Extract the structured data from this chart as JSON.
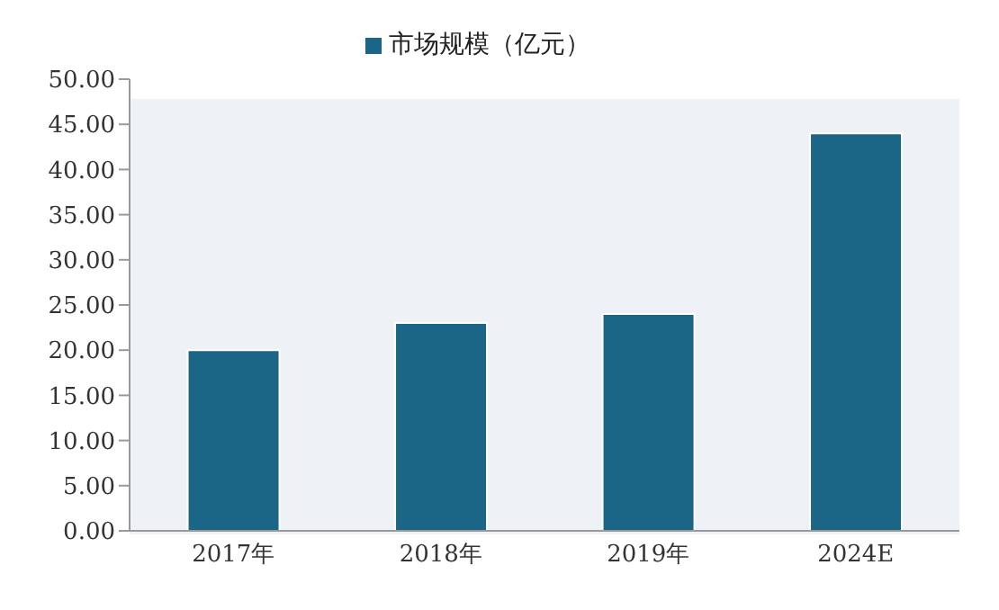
{
  "chart_data": {
    "type": "bar",
    "categories": [
      "2017年",
      "2018年",
      "2019年",
      "2024E"
    ],
    "series": [
      {
        "name": "市场规模（亿元）",
        "color": "#1b6587",
        "values": [
          20,
          23,
          24,
          44
        ]
      }
    ],
    "ylim": [
      0,
      50
    ],
    "yticks": [
      {
        "value": 0,
        "label": "0.00"
      },
      {
        "value": 5,
        "label": "5.00"
      },
      {
        "value": 10,
        "label": "10.00"
      },
      {
        "value": 15,
        "label": "15.00"
      },
      {
        "value": 20,
        "label": "20.00"
      },
      {
        "value": 25,
        "label": "25.00"
      },
      {
        "value": 30,
        "label": "30.00"
      },
      {
        "value": 35,
        "label": "35.00"
      },
      {
        "value": 40,
        "label": "40.00"
      },
      {
        "value": 45,
        "label": "45.00"
      },
      {
        "value": 50,
        "label": "50.00"
      }
    ],
    "grid": false,
    "legend": "top"
  }
}
